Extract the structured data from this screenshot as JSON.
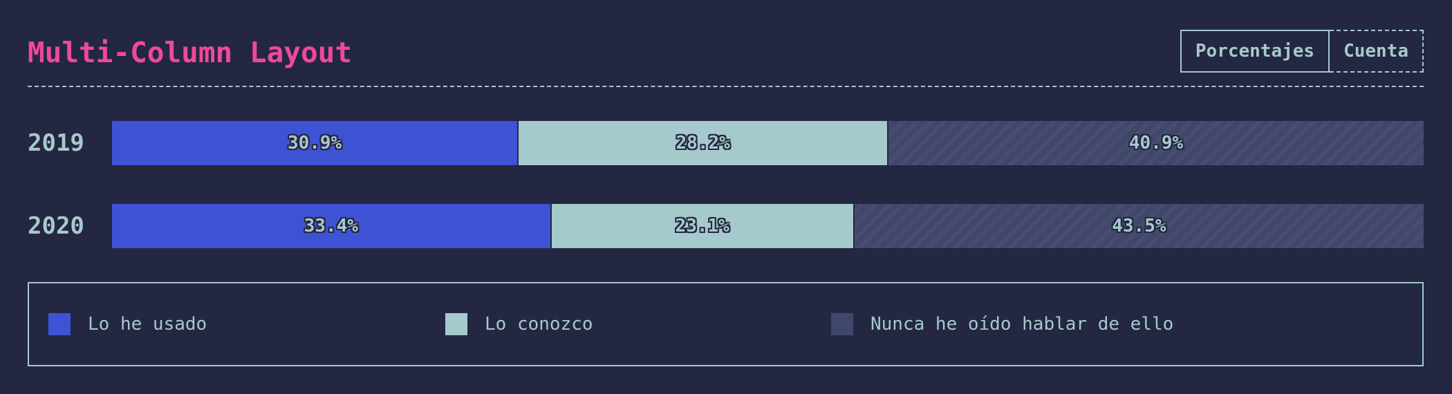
{
  "header": {
    "title": "Multi-Column Layout",
    "toggle": {
      "percent_label": "Porcentajes",
      "count_label": "Cuenta"
    }
  },
  "colors": {
    "background": "#232741",
    "title": "#f0489a",
    "text": "#a6c9cc",
    "used": "#3e53d4",
    "known": "#a6c9cc",
    "never": "#41476b"
  },
  "chart_data": {
    "type": "bar",
    "stacked": true,
    "orientation": "horizontal",
    "normalized": true,
    "title": "Multi-Column Layout",
    "categories": [
      "2019",
      "2020"
    ],
    "series": [
      {
        "name": "Lo he usado",
        "values": [
          30.9,
          33.4
        ],
        "labels": [
          "30.9%",
          "33.4%"
        ]
      },
      {
        "name": "Lo conozco",
        "values": [
          28.2,
          23.1
        ],
        "labels": [
          "28.2%",
          "23.1%"
        ]
      },
      {
        "name": "Nunca he oído hablar de ello",
        "values": [
          40.9,
          43.5
        ],
        "labels": [
          "40.9%",
          "43.5%"
        ]
      }
    ],
    "xlim": [
      0,
      100
    ],
    "grid": false,
    "legend_position": "bottom"
  },
  "legend": {
    "items": [
      {
        "label": "Lo he usado"
      },
      {
        "label": "Lo conozco"
      },
      {
        "label": "Nunca he oído hablar de ello"
      }
    ]
  }
}
